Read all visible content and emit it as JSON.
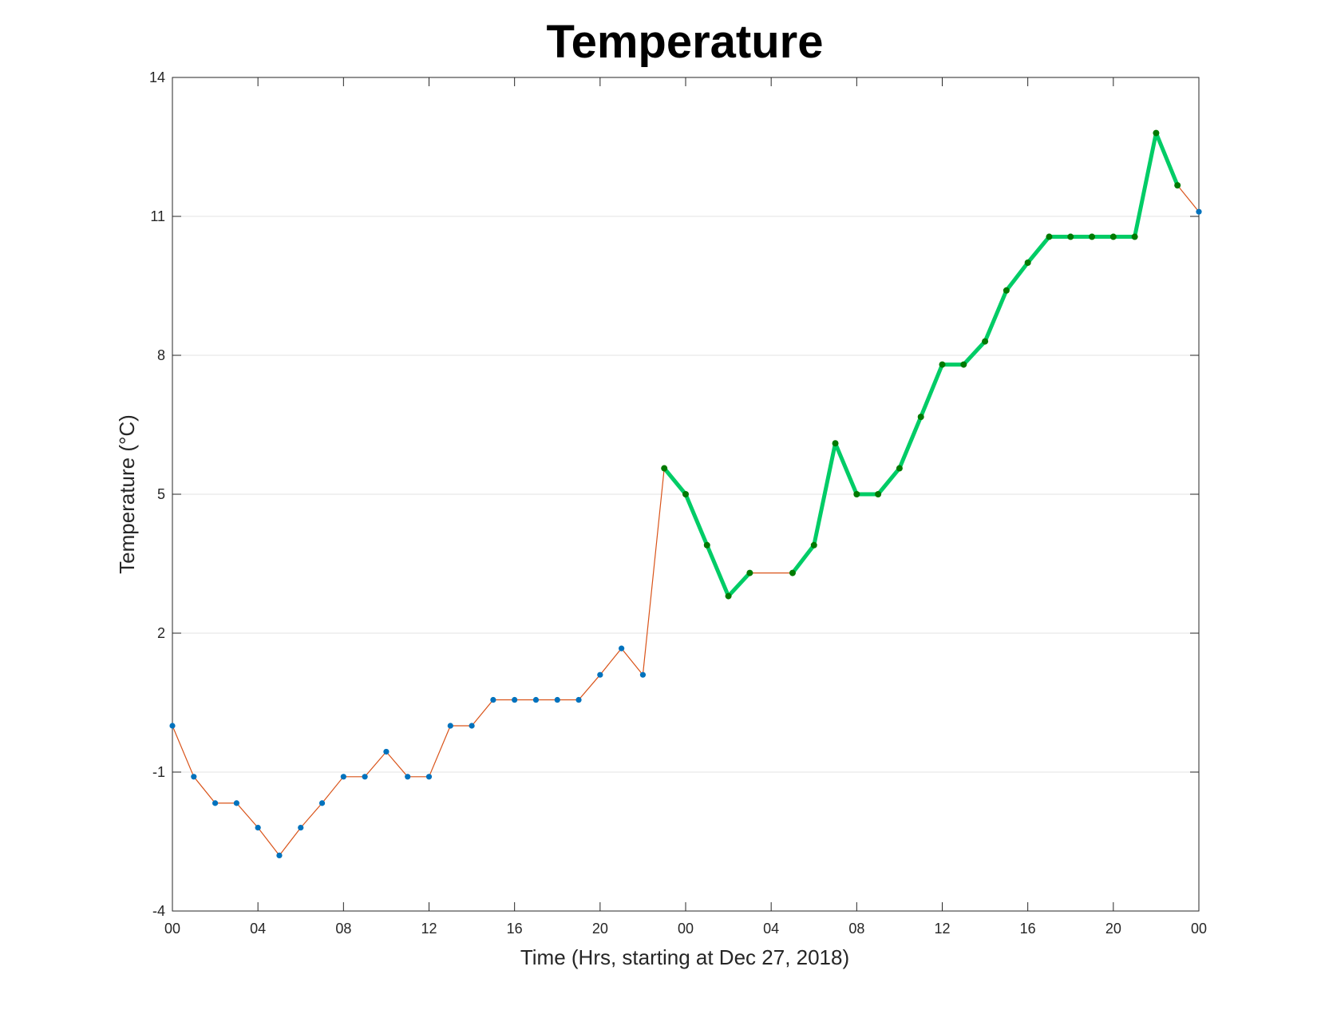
{
  "chart_data": {
    "type": "line",
    "title": "Temperature",
    "xlabel": "Time (Hrs, starting at Dec 27, 2018)",
    "ylabel": "Temperature (°C)",
    "x_unit": "hour",
    "xlim": [
      0,
      48
    ],
    "ylim": [
      -4,
      14
    ],
    "x_ticks": [
      {
        "x": 0,
        "label": "00"
      },
      {
        "x": 4,
        "label": "04"
      },
      {
        "x": 8,
        "label": "08"
      },
      {
        "x": 12,
        "label": "12"
      },
      {
        "x": 16,
        "label": "16"
      },
      {
        "x": 20,
        "label": "20"
      },
      {
        "x": 24,
        "label": "00"
      },
      {
        "x": 28,
        "label": "04"
      },
      {
        "x": 32,
        "label": "08"
      },
      {
        "x": 36,
        "label": "12"
      },
      {
        "x": 40,
        "label": "16"
      },
      {
        "x": 44,
        "label": "20"
      },
      {
        "x": 48,
        "label": "00"
      }
    ],
    "y_ticks": [
      -4,
      -1,
      2,
      5,
      8,
      11,
      14
    ],
    "grid": "y",
    "legend": "none",
    "series": [
      {
        "style": "thin line with dot markers",
        "line_color": "#d95319",
        "marker_color": "#0072bd",
        "points": [
          [
            0,
            0
          ],
          [
            1,
            -1.1
          ],
          [
            2,
            -1.67
          ],
          [
            3,
            -1.67
          ],
          [
            4,
            -2.2
          ],
          [
            5,
            -2.8
          ],
          [
            6,
            -2.2
          ],
          [
            7,
            -1.67
          ],
          [
            8,
            -1.1
          ],
          [
            9,
            -1.1
          ],
          [
            10,
            -0.56
          ],
          [
            11,
            -1.1
          ],
          [
            12,
            -1.1
          ],
          [
            13,
            0
          ],
          [
            14,
            0
          ],
          [
            15,
            0.56
          ],
          [
            16,
            0.56
          ],
          [
            17,
            0.56
          ],
          [
            18,
            0.56
          ],
          [
            19,
            0.56
          ],
          [
            20,
            1.1
          ],
          [
            21,
            1.67
          ],
          [
            22,
            1.1
          ],
          [
            23,
            5.56
          ],
          [
            24,
            5.0
          ],
          [
            25,
            3.9
          ],
          [
            26,
            2.8
          ],
          [
            27,
            3.3
          ],
          [
            29,
            3.3
          ],
          [
            30,
            3.9
          ],
          [
            31,
            6.1
          ],
          [
            32,
            5.0
          ],
          [
            33,
            5.0
          ],
          [
            34,
            5.56
          ],
          [
            35,
            6.67
          ],
          [
            36,
            7.8
          ],
          [
            37,
            7.8
          ],
          [
            38,
            8.3
          ],
          [
            39,
            9.4
          ],
          [
            40,
            10.0
          ],
          [
            41,
            10.56
          ],
          [
            42,
            10.56
          ],
          [
            43,
            10.56
          ],
          [
            44,
            10.56
          ],
          [
            45,
            10.56
          ],
          [
            46,
            12.8
          ],
          [
            47,
            11.67
          ],
          [
            48,
            11.1
          ]
        ]
      },
      {
        "style": "thick line with dot markers",
        "line_color": "#00cc66",
        "marker_color": "#007a00",
        "segments": [
          [
            [
              23,
              5.56
            ],
            [
              24,
              5.0
            ],
            [
              25,
              3.9
            ],
            [
              26,
              2.8
            ],
            [
              27,
              3.3
            ]
          ],
          [
            [
              29,
              3.3
            ],
            [
              30,
              3.9
            ],
            [
              31,
              6.1
            ],
            [
              32,
              5.0
            ],
            [
              33,
              5.0
            ],
            [
              34,
              5.56
            ],
            [
              35,
              6.67
            ],
            [
              36,
              7.8
            ],
            [
              37,
              7.8
            ],
            [
              38,
              8.3
            ],
            [
              39,
              9.4
            ],
            [
              40,
              10.0
            ],
            [
              41,
              10.56
            ],
            [
              42,
              10.56
            ],
            [
              43,
              10.56
            ],
            [
              44,
              10.56
            ],
            [
              45,
              10.56
            ],
            [
              46,
              12.8
            ],
            [
              47,
              11.67
            ]
          ]
        ]
      }
    ]
  }
}
